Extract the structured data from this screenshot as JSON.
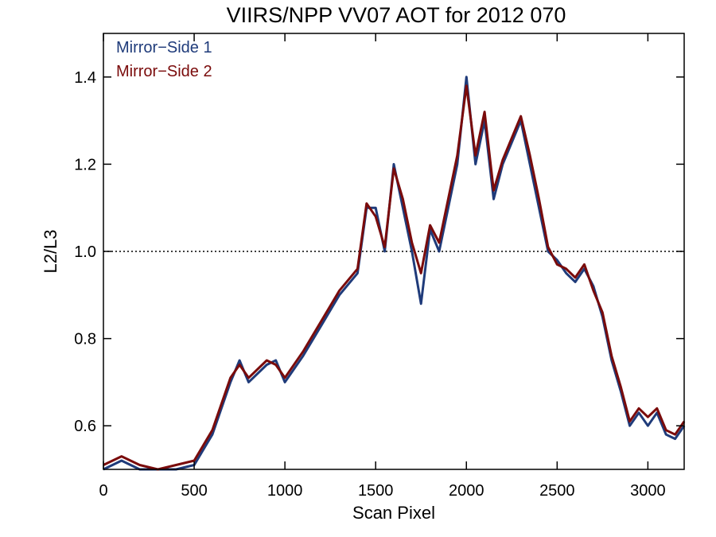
{
  "chart_data": {
    "type": "line",
    "title": "VIIRS/NPP VV07 AOT for 2012 070",
    "xlabel": "Scan Pixel",
    "ylabel": "L2/L3",
    "xlim": [
      0,
      3200
    ],
    "ylim": [
      0.5,
      1.5
    ],
    "x_ticks": [
      0,
      500,
      1000,
      1500,
      2000,
      2500,
      3000
    ],
    "x_tick_labels": [
      "0",
      "500",
      "1000",
      "1500",
      "2000",
      "2500",
      "3000"
    ],
    "y_ticks": [
      0.6,
      0.8,
      1.0,
      1.2,
      1.4
    ],
    "y_tick_labels": [
      "0.6",
      "0.8",
      "1.0",
      "1.2",
      "1.4"
    ],
    "reference_line": {
      "y": 1.0,
      "style": "dotted"
    },
    "legend_position": "top-left",
    "series": [
      {
        "name": "Mirror−Side 1",
        "color": "#1f3b7a",
        "x": [
          0,
          100,
          200,
          300,
          400,
          500,
          600,
          700,
          750,
          800,
          900,
          950,
          1000,
          1100,
          1200,
          1300,
          1400,
          1450,
          1500,
          1550,
          1600,
          1650,
          1700,
          1750,
          1800,
          1850,
          1900,
          1950,
          2000,
          2050,
          2100,
          2150,
          2200,
          2250,
          2300,
          2350,
          2400,
          2450,
          2500,
          2550,
          2600,
          2650,
          2700,
          2750,
          2800,
          2850,
          2900,
          2950,
          3000,
          3050,
          3100,
          3150,
          3200
        ],
        "y": [
          0.5,
          0.52,
          0.5,
          0.5,
          0.5,
          0.51,
          0.58,
          0.7,
          0.75,
          0.7,
          0.74,
          0.75,
          0.7,
          0.76,
          0.83,
          0.9,
          0.95,
          1.1,
          1.1,
          1.0,
          1.2,
          1.1,
          1.0,
          0.88,
          1.05,
          1.0,
          1.1,
          1.2,
          1.4,
          1.2,
          1.3,
          1.12,
          1.2,
          1.25,
          1.3,
          1.2,
          1.1,
          1.0,
          0.98,
          0.95,
          0.93,
          0.96,
          0.92,
          0.85,
          0.75,
          0.68,
          0.6,
          0.63,
          0.6,
          0.63,
          0.58,
          0.57,
          0.6
        ]
      },
      {
        "name": "Mirror−Side 2",
        "color": "#7a0b0b",
        "x": [
          0,
          100,
          200,
          300,
          400,
          500,
          600,
          700,
          750,
          800,
          900,
          950,
          1000,
          1100,
          1200,
          1300,
          1400,
          1450,
          1500,
          1550,
          1600,
          1650,
          1700,
          1750,
          1800,
          1850,
          1900,
          1950,
          2000,
          2050,
          2100,
          2150,
          2200,
          2250,
          2300,
          2350,
          2400,
          2450,
          2500,
          2550,
          2600,
          2650,
          2700,
          2750,
          2800,
          2850,
          2900,
          2950,
          3000,
          3050,
          3100,
          3150,
          3200
        ],
        "y": [
          0.51,
          0.53,
          0.51,
          0.5,
          0.51,
          0.52,
          0.59,
          0.71,
          0.74,
          0.71,
          0.75,
          0.74,
          0.71,
          0.77,
          0.84,
          0.91,
          0.96,
          1.11,
          1.08,
          1.01,
          1.19,
          1.12,
          1.02,
          0.95,
          1.06,
          1.02,
          1.12,
          1.22,
          1.38,
          1.22,
          1.32,
          1.14,
          1.21,
          1.26,
          1.31,
          1.22,
          1.12,
          1.01,
          0.97,
          0.96,
          0.94,
          0.97,
          0.91,
          0.86,
          0.76,
          0.69,
          0.61,
          0.64,
          0.62,
          0.64,
          0.59,
          0.58,
          0.61
        ]
      }
    ]
  }
}
